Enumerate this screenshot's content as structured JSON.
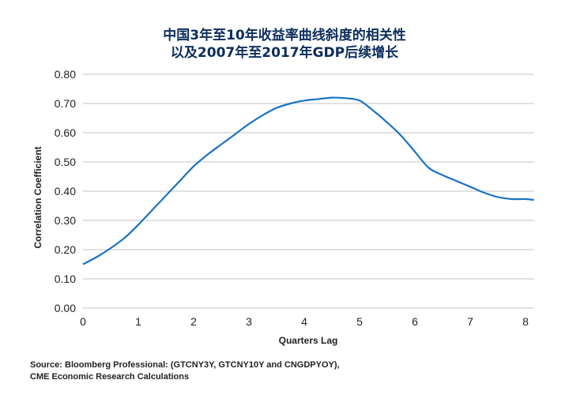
{
  "chart_data": {
    "type": "line",
    "title": [
      "中国3年至10年收益率曲线斜度的相关性",
      "以及2007年至2017年GDP后续增长"
    ],
    "xlabel": "Quarters Lag",
    "ylabel": "Correlation Coefficient",
    "xlim": [
      0,
      8.15
    ],
    "ylim": [
      0,
      0.8
    ],
    "xticks": [
      "0",
      "1",
      "2",
      "3",
      "4",
      "5",
      "6",
      "7",
      "8"
    ],
    "yticks": [
      "0.00",
      "0.10",
      "0.20",
      "0.30",
      "0.40",
      "0.50",
      "0.60",
      "0.70",
      "0.80"
    ],
    "grid": "horizontal",
    "color": "#1a73c2",
    "series": [
      {
        "x": [
          0,
          0.25,
          0.5,
          0.75,
          1,
          1.25,
          1.5,
          1.75,
          2,
          2.25,
          2.5,
          2.75,
          3,
          3.25,
          3.5,
          3.75,
          4,
          4.25,
          4.5,
          4.75,
          5,
          5.25,
          5.5,
          5.75,
          6,
          6.25,
          6.5,
          6.75,
          7,
          7.25,
          7.5,
          7.75,
          8,
          8.15
        ],
        "y": [
          0.15,
          0.175,
          0.205,
          0.24,
          0.285,
          0.335,
          0.385,
          0.435,
          0.485,
          0.525,
          0.56,
          0.595,
          0.63,
          0.66,
          0.685,
          0.7,
          0.71,
          0.715,
          0.72,
          0.718,
          0.71,
          0.675,
          0.635,
          0.59,
          0.535,
          0.48,
          0.455,
          0.435,
          0.415,
          0.395,
          0.38,
          0.373,
          0.373,
          0.37
        ]
      }
    ]
  },
  "source": [
    "Source: Bloomberg Professional: (GTCNY3Y, GTCNY10Y and CNGDPYOY),",
    "CME Economic Research Calculations"
  ]
}
